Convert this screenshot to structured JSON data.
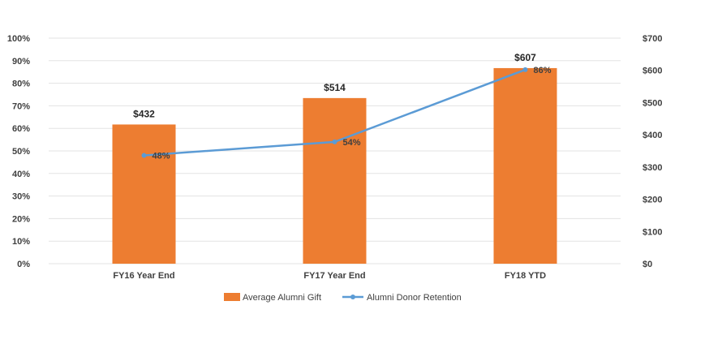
{
  "chart_data": {
    "type": "bar",
    "categories": [
      "FY16 Year End",
      "FY17 Year End",
      "FY18 YTD"
    ],
    "series": [
      {
        "name": "Average Alumni Gift",
        "type": "bar",
        "axis": "right",
        "values": [
          432,
          514,
          607
        ],
        "labels": [
          "$432",
          "$514",
          "$607"
        ],
        "color": "#ED7D31"
      },
      {
        "name": "Alumni Donor Retention",
        "type": "line",
        "axis": "left",
        "values": [
          48,
          54,
          86
        ],
        "labels": [
          "48%",
          "54%",
          "86%"
        ],
        "color": "#5B9BD5"
      }
    ],
    "y_left": {
      "ylim": [
        0,
        100
      ],
      "ticks": [
        "0%",
        "10%",
        "20%",
        "30%",
        "40%",
        "50%",
        "60%",
        "70%",
        "80%",
        "90%",
        "100%"
      ]
    },
    "y_right": {
      "ylim": [
        0,
        700
      ],
      "ticks": [
        "$0",
        "$100",
        "$200",
        "$300",
        "$400",
        "$500",
        "$600",
        "$700"
      ]
    },
    "grid": true,
    "legend": "bottom"
  }
}
